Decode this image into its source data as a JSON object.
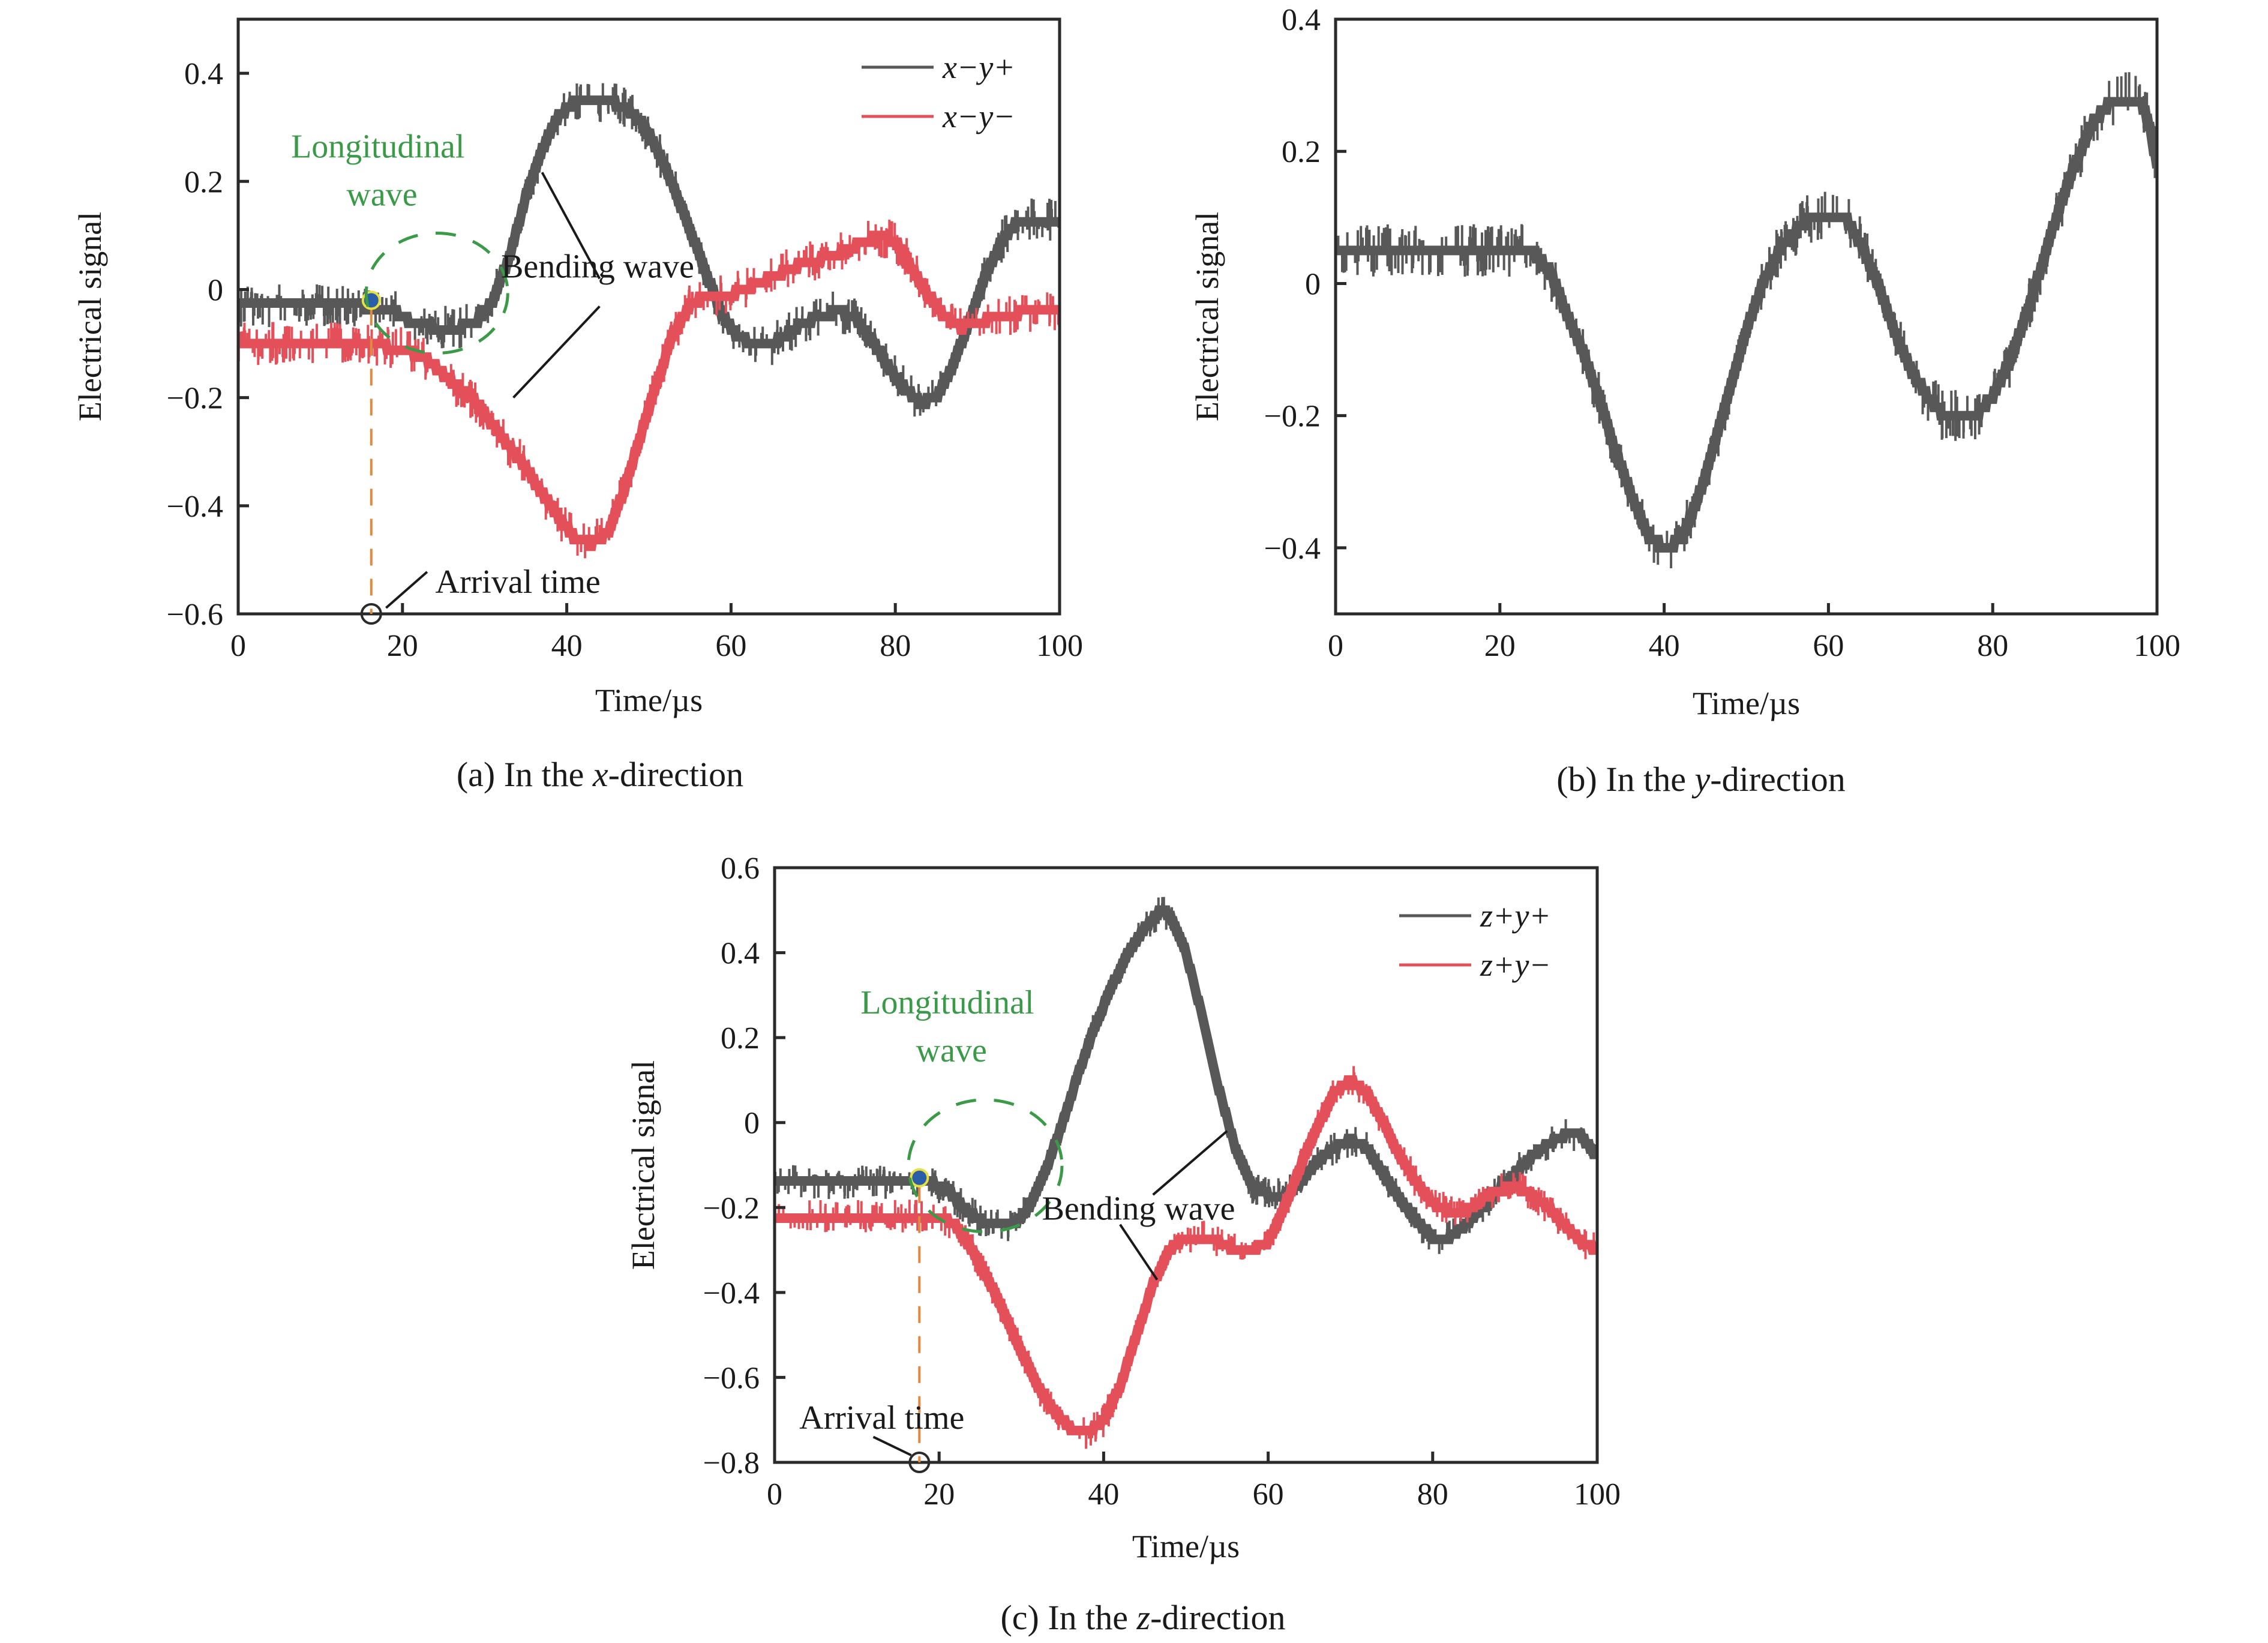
{
  "figure": {
    "colors": {
      "series_gray": "#585858",
      "series_red": "#e4505a",
      "axis": "#2a2a2a",
      "longitudinal_green": "#3a9a48",
      "arrival_orange": "#e08a40",
      "marker_fill": "#2a5ea8",
      "marker_ring": "#e6e040"
    }
  },
  "chart_data": [
    {
      "id": "a",
      "type": "line",
      "caption": "(a) In the x-direction",
      "caption_parts": [
        "(a) In the ",
        "x",
        "-direction"
      ],
      "xlabel": "Time/µs",
      "ylabel": "Electrical signal",
      "xlim": [
        0,
        100
      ],
      "ylim": [
        -0.6,
        0.5
      ],
      "xticks": [
        0,
        20,
        40,
        60,
        80,
        100
      ],
      "xtick_labels": [
        "0",
        "20",
        "40",
        "60",
        "80",
        "100"
      ],
      "yticks": [
        -0.6,
        -0.4,
        -0.2,
        0,
        0.2,
        0.4
      ],
      "ytick_labels": [
        "−0.6",
        "−0.4",
        "−0.2",
        "0",
        "0.2",
        "0.4"
      ],
      "grid": false,
      "legend_position": "top-right",
      "series": [
        {
          "name": "x−y+",
          "color": "#585858",
          "x": [
            0,
            5,
            10,
            15,
            19,
            21,
            24,
            27,
            29,
            31,
            33,
            35,
            37,
            39,
            41,
            44,
            47,
            49,
            51,
            53,
            55,
            57,
            59,
            61,
            63,
            65,
            67,
            69,
            71,
            73,
            75,
            77,
            79,
            81,
            83,
            85,
            87,
            89,
            91,
            93,
            95,
            97,
            100
          ],
          "y": [
            -0.03,
            -0.03,
            -0.03,
            -0.03,
            -0.04,
            -0.06,
            -0.07,
            -0.07,
            -0.06,
            -0.02,
            0.06,
            0.17,
            0.26,
            0.32,
            0.35,
            0.35,
            0.34,
            0.31,
            0.26,
            0.19,
            0.11,
            0.03,
            -0.05,
            -0.09,
            -0.1,
            -0.1,
            -0.08,
            -0.06,
            -0.05,
            -0.04,
            -0.05,
            -0.09,
            -0.14,
            -0.18,
            -0.21,
            -0.2,
            -0.14,
            -0.06,
            0.03,
            0.09,
            0.13,
            0.13,
            0.13
          ]
        },
        {
          "name": "x−y−",
          "color": "#e4505a",
          "x": [
            0,
            5,
            10,
            15,
            20,
            23,
            26,
            29,
            32,
            35,
            38,
            41,
            43,
            45,
            47,
            49,
            51,
            53,
            55,
            57,
            60,
            63,
            66,
            69,
            72,
            75,
            78,
            80,
            82,
            84,
            86,
            88,
            90,
            93,
            96,
            100
          ],
          "y": [
            -0.1,
            -0.1,
            -0.1,
            -0.1,
            -0.11,
            -0.13,
            -0.17,
            -0.21,
            -0.27,
            -0.33,
            -0.4,
            -0.46,
            -0.47,
            -0.45,
            -0.37,
            -0.27,
            -0.17,
            -0.08,
            -0.03,
            -0.01,
            -0.01,
            0.01,
            0.03,
            0.05,
            0.06,
            0.08,
            0.1,
            0.09,
            0.04,
            -0.01,
            -0.05,
            -0.07,
            -0.06,
            -0.05,
            -0.04,
            -0.04
          ]
        }
      ],
      "annotations": {
        "longitudinal_label_line1": "Longitudinal",
        "longitudinal_label_line2": "wave",
        "bending_label": "Bending wave",
        "arrival_label": "Arrival time",
        "arrival_time_us": 16.2,
        "arrival_signal": -0.02
      }
    },
    {
      "id": "b",
      "type": "line",
      "caption": "(b) In the y-direction",
      "caption_parts": [
        "(b) In the ",
        "y",
        "-direction"
      ],
      "xlabel": "Time/µs",
      "ylabel": "Electrical signal",
      "xlim": [
        0,
        100
      ],
      "ylim": [
        -0.5,
        0.4
      ],
      "xticks": [
        0,
        20,
        40,
        60,
        80,
        100
      ],
      "xtick_labels": [
        "0",
        "20",
        "40",
        "60",
        "80",
        "100"
      ],
      "yticks": [
        -0.4,
        -0.2,
        0,
        0.2,
        0.4
      ],
      "ytick_labels": [
        "−0.4",
        "−0.2",
        "0",
        "0.2",
        "0.4"
      ],
      "grid": false,
      "series": [
        {
          "name": "y-direction",
          "color": "#585858",
          "x": [
            0,
            5,
            10,
            15,
            20,
            24,
            26,
            28,
            30,
            32,
            34,
            36,
            38,
            40,
            42,
            44,
            46,
            48,
            50,
            52,
            54,
            56,
            58,
            60,
            62,
            64,
            66,
            68,
            70,
            72,
            74,
            76,
            78,
            80,
            82,
            84,
            86,
            88,
            90,
            92,
            94,
            96,
            98,
            99,
            100
          ],
          "y": [
            0.05,
            0.05,
            0.05,
            0.05,
            0.05,
            0.05,
            0.02,
            -0.04,
            -0.1,
            -0.17,
            -0.25,
            -0.32,
            -0.38,
            -0.4,
            -0.39,
            -0.33,
            -0.25,
            -0.16,
            -0.07,
            0.0,
            0.05,
            0.08,
            0.1,
            0.1,
            0.1,
            0.06,
            0.0,
            -0.07,
            -0.13,
            -0.17,
            -0.2,
            -0.2,
            -0.2,
            -0.17,
            -0.12,
            -0.05,
            0.03,
            0.11,
            0.18,
            0.24,
            0.27,
            0.28,
            0.28,
            0.24,
            0.18
          ]
        }
      ]
    },
    {
      "id": "c",
      "type": "line",
      "caption": "(c) In the z-direction",
      "caption_parts": [
        "(c) In the ",
        "z",
        "-direction"
      ],
      "xlabel": "Time/µs",
      "ylabel": "Electrical signal",
      "xlim": [
        0,
        100
      ],
      "ylim": [
        -0.8,
        0.6
      ],
      "xticks": [
        0,
        20,
        40,
        60,
        80,
        100
      ],
      "xtick_labels": [
        "0",
        "20",
        "40",
        "60",
        "80",
        "100"
      ],
      "yticks": [
        -0.8,
        -0.6,
        -0.4,
        -0.2,
        0,
        0.2,
        0.4,
        0.6
      ],
      "ytick_labels": [
        "−0.8",
        "−0.6",
        "−0.4",
        "−0.2",
        "0",
        "0.2",
        "0.4",
        "0.6"
      ],
      "grid": false,
      "legend_position": "top-right",
      "series": [
        {
          "name": "z+y+",
          "color": "#585858",
          "x": [
            0,
            5,
            10,
            15,
            19,
            21,
            23,
            25,
            27,
            29,
            31,
            33,
            35,
            37,
            39,
            41,
            43,
            45,
            47,
            48,
            50,
            52,
            54,
            56,
            58,
            60,
            62,
            64,
            66,
            68,
            70,
            72,
            74,
            76,
            78,
            80,
            82,
            84,
            86,
            88,
            90,
            92,
            94,
            96,
            98,
            100
          ],
          "y": [
            -0.14,
            -0.14,
            -0.14,
            -0.14,
            -0.14,
            -0.16,
            -0.2,
            -0.23,
            -0.24,
            -0.24,
            -0.2,
            -0.11,
            0.0,
            0.12,
            0.23,
            0.32,
            0.4,
            0.46,
            0.5,
            0.49,
            0.4,
            0.25,
            0.08,
            -0.06,
            -0.15,
            -0.17,
            -0.17,
            -0.14,
            -0.09,
            -0.06,
            -0.04,
            -0.06,
            -0.12,
            -0.18,
            -0.23,
            -0.27,
            -0.27,
            -0.24,
            -0.2,
            -0.16,
            -0.12,
            -0.08,
            -0.05,
            -0.03,
            -0.03,
            -0.08
          ]
        },
        {
          "name": "z+y−",
          "color": "#e4505a",
          "x": [
            0,
            5,
            10,
            15,
            20,
            22,
            24,
            26,
            28,
            30,
            32,
            34,
            36,
            38,
            40,
            42,
            44,
            46,
            48,
            50,
            52,
            54,
            56,
            58,
            60,
            62,
            64,
            66,
            68,
            70,
            72,
            74,
            76,
            78,
            80,
            82,
            84,
            86,
            88,
            90,
            92,
            94,
            96,
            98,
            100
          ],
          "y": [
            -0.22,
            -0.22,
            -0.22,
            -0.22,
            -0.22,
            -0.24,
            -0.3,
            -0.37,
            -0.45,
            -0.54,
            -0.62,
            -0.68,
            -0.72,
            -0.73,
            -0.7,
            -0.62,
            -0.5,
            -0.38,
            -0.3,
            -0.27,
            -0.27,
            -0.28,
            -0.3,
            -0.3,
            -0.28,
            -0.2,
            -0.1,
            -0.01,
            0.07,
            0.1,
            0.07,
            0.0,
            -0.08,
            -0.14,
            -0.19,
            -0.21,
            -0.21,
            -0.18,
            -0.16,
            -0.15,
            -0.17,
            -0.2,
            -0.24,
            -0.28,
            -0.3
          ]
        }
      ],
      "annotations": {
        "longitudinal_label_line1": "Longitudinal",
        "longitudinal_label_line2": "wave",
        "bending_label": "Bending wave",
        "arrival_label": "Arrival time",
        "arrival_time_us": 17.6,
        "arrival_signal": -0.13
      }
    }
  ]
}
